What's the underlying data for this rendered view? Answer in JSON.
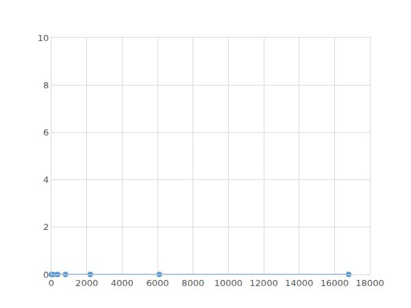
{
  "chart_data": {
    "type": "line",
    "x": [
      0,
      100,
      350,
      800,
      2200,
      6100,
      16800
    ],
    "values": [
      0,
      0,
      0,
      0,
      0,
      0,
      0
    ],
    "color": "#5b9bd5",
    "marker": "circle",
    "xlim": [
      0,
      18000
    ],
    "xticks": [
      0,
      2000,
      4000,
      6000,
      8000,
      10000,
      12000,
      14000,
      16000,
      18000
    ],
    "ylim": [
      0,
      10
    ],
    "yticks": [
      0,
      2,
      4,
      6,
      8,
      10
    ],
    "grid": true
  }
}
